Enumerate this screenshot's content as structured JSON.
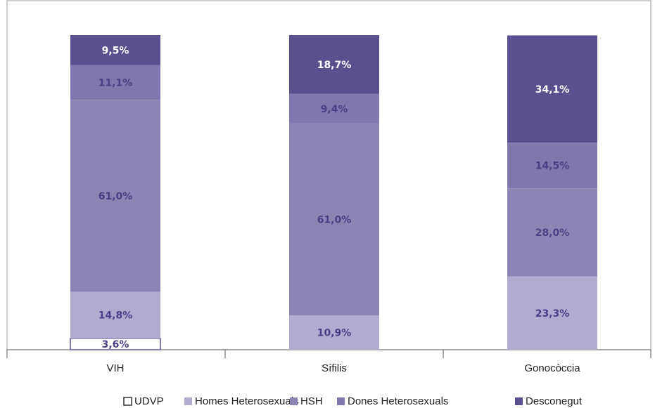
{
  "chart_data": {
    "type": "stacked_bar",
    "categories": [
      "VIH",
      "Sífilis",
      "Gonocòccia"
    ],
    "ylim": [
      0,
      100
    ],
    "series": [
      {
        "name": "UDVP",
        "color": "#ffffff",
        "values": [
          3.6,
          null,
          null
        ],
        "value_labels": [
          "3,6%",
          null,
          null
        ]
      },
      {
        "name": "Homes Heterosexuals",
        "color": "#b2abcf",
        "values": [
          14.8,
          10.9,
          23.3
        ],
        "value_labels": [
          "14,8%",
          "10,9%",
          "23,3%"
        ]
      },
      {
        "name": "HSH",
        "color": "#8b84b5",
        "values": [
          61.0,
          61.0,
          28.0
        ],
        "value_labels": [
          "61,0%",
          "61,0%",
          "28,0%"
        ]
      },
      {
        "name": "Dones Heterosexuals",
        "color": "#7f77ad",
        "values": [
          11.1,
          9.4,
          14.5
        ],
        "value_labels": [
          "11,1%",
          "9,4%",
          "14,5%"
        ]
      },
      {
        "name": "Desconegut",
        "color": "#5b4f90",
        "values": [
          9.5,
          18.7,
          34.1
        ],
        "value_labels": [
          "9,5%",
          "18,7%",
          "34,1%"
        ]
      }
    ]
  }
}
